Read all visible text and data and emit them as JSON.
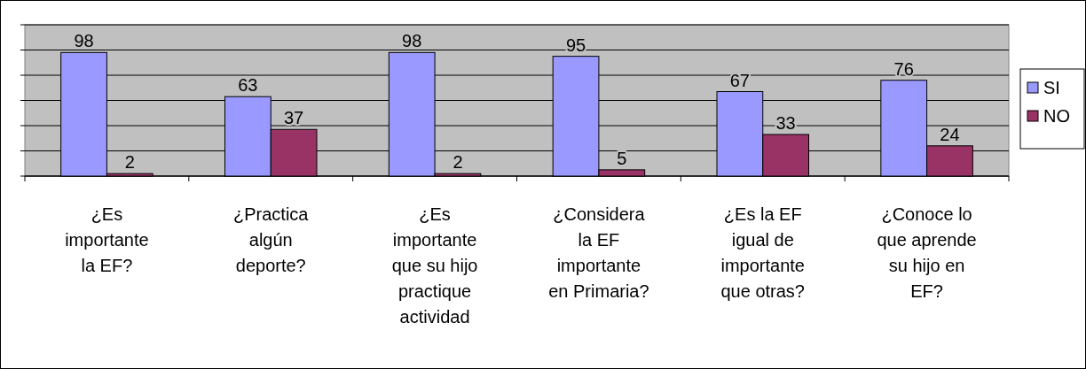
{
  "chart_data": {
    "type": "bar",
    "categories": [
      "¿Es importante la EF?",
      "¿Practica algún deporte?",
      "¿Es importante que su hijo practique actividad",
      "¿Considera la EF importante en Primaria?",
      "¿Es la EF igual de importante que otras?",
      "¿Conoce lo que aprende su hijo en EF?"
    ],
    "series": [
      {
        "name": "SI",
        "color": "#9999ff",
        "values": [
          98,
          63,
          98,
          95,
          67,
          76
        ]
      },
      {
        "name": "NO",
        "color": "#993366",
        "values": [
          2,
          37,
          2,
          5,
          33,
          24
        ]
      }
    ],
    "ylim": [
      0,
      120
    ],
    "yticks": [
      {
        "value": 0,
        "label": null
      },
      {
        "value": 20,
        "label": null
      },
      {
        "value": 40,
        "label": null
      },
      {
        "value": 60,
        "label": null
      },
      {
        "value": 80,
        "label": null
      },
      {
        "value": 100,
        "label": null
      },
      {
        "value": 120,
        "label": null
      }
    ],
    "tick_labels": "x",
    "grid": "y",
    "legend": "right",
    "data_labels": true
  }
}
